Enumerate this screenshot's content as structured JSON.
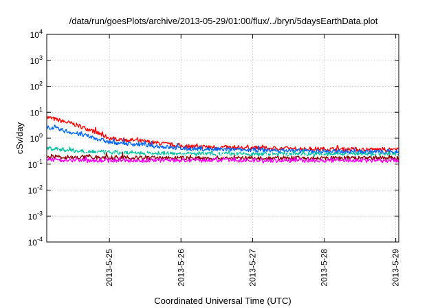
{
  "chart_data": {
    "type": "line",
    "title": "/data/run/goesPlots/archive/2013-05-29/01:00/flux/../bryn/5daysEarthData.plot",
    "xlabel": "Coordinated Universal Time (UTC)",
    "ylabel": "cSv/day",
    "yscale": "log",
    "ylim": [
      0.0001,
      10000
    ],
    "xlim": [
      "2013-05-24 03:00",
      "2013-05-29 01:00"
    ],
    "grid": true,
    "x_ticks": [
      "2013-5-25",
      "2013-5-26",
      "2013-5-27",
      "2013-5-28",
      "2013-5-29"
    ],
    "y_ticks": [
      {
        "base": "10",
        "exp": "4"
      },
      {
        "base": "10",
        "exp": "3"
      },
      {
        "base": "10",
        "exp": "2"
      },
      {
        "base": "10",
        "exp": "1"
      },
      {
        "base": "10",
        "exp": "0"
      },
      {
        "base": "10",
        "exp": "-1"
      },
      {
        "base": "10",
        "exp": "-2"
      },
      {
        "base": "10",
        "exp": "-3"
      },
      {
        "base": "10",
        "exp": "-4"
      }
    ],
    "series": [
      {
        "color": "#ff0000",
        "x": [
          "2013-05-24 03:00",
          "2013-05-24 12:00",
          "2013-05-24 18:00",
          "2013-05-25 00:00",
          "2013-05-25 12:00",
          "2013-05-26 00:00",
          "2013-05-26 12:00",
          "2013-05-27 00:00",
          "2013-05-27 12:00",
          "2013-05-28 00:00",
          "2013-05-28 12:00",
          "2013-05-29 01:00"
        ],
        "values": [
          6.5,
          3.5,
          2.0,
          1.0,
          0.75,
          0.5,
          0.45,
          0.42,
          0.4,
          0.38,
          0.37,
          0.36
        ]
      },
      {
        "color": "#0066ff",
        "x": [
          "2013-05-24 03:00",
          "2013-05-24 12:00",
          "2013-05-24 18:00",
          "2013-05-25 00:00",
          "2013-05-25 12:00",
          "2013-05-26 00:00",
          "2013-05-26 12:00",
          "2013-05-27 00:00",
          "2013-05-27 12:00",
          "2013-05-28 00:00",
          "2013-05-28 12:00",
          "2013-05-29 01:00"
        ],
        "values": [
          2.8,
          1.6,
          1.1,
          0.7,
          0.55,
          0.4,
          0.37,
          0.35,
          0.33,
          0.31,
          0.3,
          0.3
        ]
      },
      {
        "color": "#00c0a0",
        "x": [
          "2013-05-24 03:00",
          "2013-05-24 12:00",
          "2013-05-25 00:00",
          "2013-05-25 12:00",
          "2013-05-26 00:00",
          "2013-05-27 00:00",
          "2013-05-28 00:00",
          "2013-05-29 01:00"
        ],
        "values": [
          0.42,
          0.33,
          0.28,
          0.26,
          0.25,
          0.24,
          0.24,
          0.24
        ]
      },
      {
        "color": "#ffffff",
        "x": [
          "2013-05-24 03:00",
          "2013-05-25 00:00",
          "2013-05-26 00:00",
          "2013-05-27 00:00",
          "2013-05-28 00:00",
          "2013-05-29 01:00"
        ],
        "values": [
          0.26,
          0.22,
          0.2,
          0.2,
          0.2,
          0.2
        ]
      },
      {
        "color": "#8b0000",
        "x": [
          "2013-05-24 03:00",
          "2013-05-25 00:00",
          "2013-05-26 00:00",
          "2013-05-27 00:00",
          "2013-05-28 00:00",
          "2013-05-29 01:00"
        ],
        "values": [
          0.19,
          0.18,
          0.17,
          0.17,
          0.17,
          0.17
        ]
      },
      {
        "color": "#ff00ff",
        "x": [
          "2013-05-24 03:00",
          "2013-05-25 00:00",
          "2013-05-26 00:00",
          "2013-05-27 00:00",
          "2013-05-28 00:00",
          "2013-05-29 01:00"
        ],
        "values": [
          0.15,
          0.14,
          0.14,
          0.14,
          0.14,
          0.14
        ]
      }
    ]
  }
}
